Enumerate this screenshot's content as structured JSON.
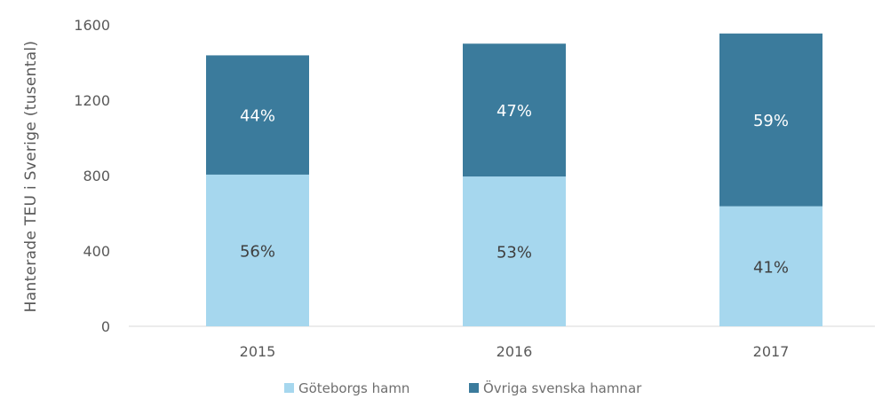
{
  "chart_data": {
    "type": "bar",
    "stacked": true,
    "categories": [
      "2015",
      "2016",
      "2017"
    ],
    "series": [
      {
        "name": "Göteborgs hamn",
        "values": [
          805,
          795,
          637
        ],
        "labels": [
          "56%",
          "53%",
          "41%"
        ],
        "color": "#a6d7ee",
        "label_color": "#3f3f3f"
      },
      {
        "name": "Övriga svenska hamnar",
        "values": [
          633,
          705,
          917
        ],
        "labels": [
          "44%",
          "47%",
          "59%"
        ],
        "color": "#3b7b9c",
        "label_color": "#ffffff"
      }
    ],
    "title": "",
    "xlabel": "",
    "ylabel": "Hanterade TEU i Sverige (tusental)",
    "ylim": [
      0,
      1600
    ],
    "yticks": [
      "0",
      "400",
      "800",
      "1200",
      "1600"
    ],
    "grid": false,
    "legend_position": "bottom"
  }
}
